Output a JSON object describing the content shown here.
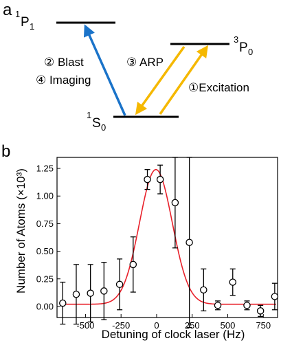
{
  "panel_a": {
    "label": "a",
    "levels": {
      "p1": "P",
      "p1_pre": "1",
      "p1_sub": "1",
      "p0": "P",
      "p0_pre": "3",
      "p0_sub": "0",
      "s0": "S",
      "s0_pre": "1",
      "s0_sub": "0"
    },
    "steps": {
      "blast": "② Blast",
      "imaging": "④ Imaging",
      "arp": "③ ARP",
      "excitation": "①Excitation"
    },
    "colors": {
      "blast_arrow": "#1a73c9",
      "excitation_arrow": "#f5b800",
      "level_line": "#000000"
    }
  },
  "panel_b": {
    "label": "b"
  },
  "chart_data": {
    "type": "scatter",
    "xlabel": "Detuning of clock laser (Hz)",
    "ylabel": "Number of Atoms (×10³)",
    "xlim": [
      -700,
      850
    ],
    "ylim": [
      -0.1,
      1.35
    ],
    "x_ticks": [
      -500,
      -250,
      0,
      250,
      500,
      750
    ],
    "x_tick_labels": [
      "-500",
      "-250",
      "0",
      "250",
      "500",
      "750"
    ],
    "y_ticks": [
      0.0,
      0.25,
      0.5,
      0.75,
      1.0,
      1.25
    ],
    "y_tick_labels": [
      "0.00",
      "0.25",
      "0.50",
      "0.75",
      "1.00",
      "1.25"
    ],
    "grid": false,
    "points": [
      {
        "x": -660,
        "y": 0.03,
        "err": 0.19
      },
      {
        "x": -565,
        "y": 0.11,
        "err": 0.27
      },
      {
        "x": -465,
        "y": 0.12,
        "err": 0.26
      },
      {
        "x": -370,
        "y": 0.14,
        "err": 0.26
      },
      {
        "x": -260,
        "y": 0.2,
        "err": 0.23
      },
      {
        "x": -165,
        "y": 0.38,
        "err": 0.25
      },
      {
        "x": -65,
        "y": 1.15,
        "err": 0.09
      },
      {
        "x": 25,
        "y": 1.15,
        "err": 0.13
      },
      {
        "x": 130,
        "y": 0.94,
        "err": 0.41
      },
      {
        "x": 230,
        "y": 0.58,
        "err": 0.77
      },
      {
        "x": 330,
        "y": 0.15,
        "err": 0.19
      },
      {
        "x": 430,
        "y": 0.01,
        "err": 0.04
      },
      {
        "x": 535,
        "y": 0.22,
        "err": 0.12
      },
      {
        "x": 635,
        "y": 0.01,
        "err": 0.04
      },
      {
        "x": 730,
        "y": -0.04,
        "err": 0.05
      },
      {
        "x": 830,
        "y": 0.09,
        "err": 0.12
      }
    ],
    "fit": {
      "type": "gaussian",
      "amplitude": 1.22,
      "center": -5,
      "sigma": 115,
      "offset": 0.02,
      "color": "#e8202a"
    },
    "marker_color": "#ffffff",
    "marker_edge": "#000000",
    "errorbar_color": "#000000"
  }
}
